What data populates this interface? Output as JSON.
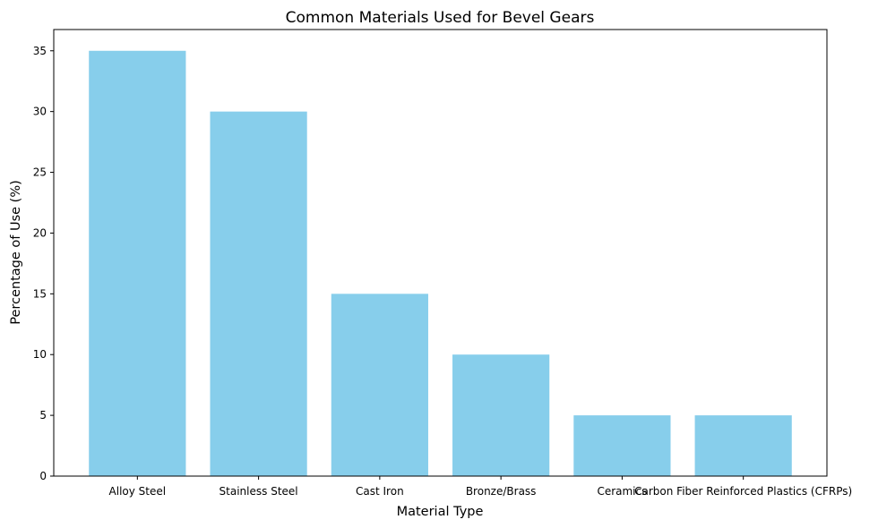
{
  "chart_data": {
    "type": "bar",
    "title": "Common Materials Used for Bevel Gears",
    "xlabel": "Material Type",
    "ylabel": "Percentage of Use (%)",
    "categories": [
      "Alloy Steel",
      "Stainless Steel",
      "Cast Iron",
      "Bronze/Brass",
      "Ceramics",
      "Carbon Fiber Reinforced Plastics (CFRPs)"
    ],
    "values": [
      35,
      30,
      15,
      10,
      5,
      5
    ],
    "ylim": [
      0,
      36.75
    ],
    "yticks": [
      0,
      5,
      10,
      15,
      20,
      25,
      30,
      35
    ],
    "grid": false,
    "bar_color": "#87CEEB"
  }
}
